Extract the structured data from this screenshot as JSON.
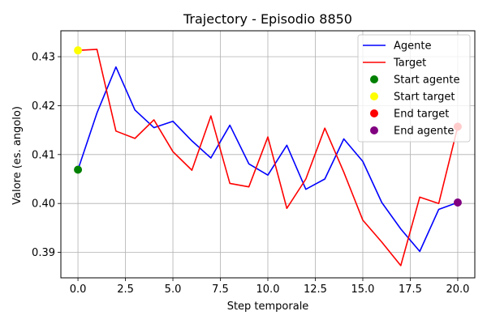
{
  "chart_data": {
    "type": "line",
    "title": "Trajectory - Episodio 8850",
    "xlabel": "Step temporale",
    "ylabel": "Valore (es. angolo)",
    "xlim": [
      -0.9,
      20.9
    ],
    "ylim": [
      0.3848,
      0.4353
    ],
    "xticks": [
      0.0,
      2.5,
      5.0,
      7.5,
      10.0,
      12.5,
      15.0,
      17.5,
      20.0
    ],
    "xtick_labels": [
      "0.0",
      "2.5",
      "5.0",
      "7.5",
      "10.0",
      "12.5",
      "15.0",
      "17.5",
      "20.0"
    ],
    "yticks": [
      0.39,
      0.4,
      0.41,
      0.42,
      0.43
    ],
    "ytick_labels": [
      "0.39",
      "0.40",
      "0.41",
      "0.42",
      "0.43"
    ],
    "grid": true,
    "legend_position": "top-right",
    "x": [
      0,
      1,
      2,
      3,
      4,
      5,
      6,
      7,
      8,
      9,
      10,
      11,
      12,
      13,
      14,
      15,
      16,
      17,
      18,
      19,
      20
    ],
    "series": [
      {
        "name": "Agente",
        "color": "#0000ff",
        "values": [
          0.4069,
          0.4185,
          0.4279,
          0.4191,
          0.4155,
          0.4168,
          0.4128,
          0.4093,
          0.416,
          0.4081,
          0.4058,
          0.4119,
          0.4029,
          0.405,
          0.4132,
          0.4086,
          0.4002,
          0.3948,
          0.3902,
          0.3988,
          0.4002
        ]
      },
      {
        "name": "Target",
        "color": "#ff0000",
        "values": [
          0.4313,
          0.4315,
          0.4148,
          0.4133,
          0.4171,
          0.4106,
          0.4068,
          0.4179,
          0.4041,
          0.4034,
          0.4136,
          0.399,
          0.405,
          0.4154,
          0.4064,
          0.3966,
          0.3921,
          0.3873,
          0.4013,
          0.4,
          0.4157
        ]
      }
    ],
    "markers": [
      {
        "name": "Start agente",
        "color": "#008000",
        "x": 0,
        "y": 0.4069
      },
      {
        "name": "Start target",
        "color": "#ffff00",
        "x": 0,
        "y": 0.4313
      },
      {
        "name": "End target",
        "color": "#ff0000",
        "x": 20,
        "y": 0.4157
      },
      {
        "name": "End agente",
        "color": "#800080",
        "x": 20,
        "y": 0.4002
      }
    ]
  }
}
